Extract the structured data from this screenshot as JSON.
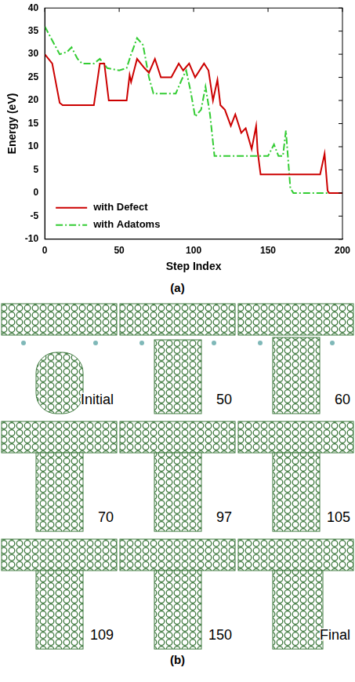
{
  "chart_data": {
    "type": "line",
    "caption": "(a)",
    "x_label": "Step Index",
    "y_label": "Energy (eV)",
    "xlim": [
      0,
      200
    ],
    "xticks": [
      0,
      50,
      100,
      150,
      200
    ],
    "ylim": [
      -10,
      40
    ],
    "yticks": [
      -10,
      -5,
      0,
      5,
      10,
      15,
      20,
      25,
      30,
      35,
      40
    ],
    "grid": false,
    "legend": "lower left",
    "series": [
      {
        "name": "with Defect",
        "color": "#cc0000",
        "line_style": "solid",
        "x": [
          0,
          5,
          10,
          12,
          33,
          37,
          40,
          43,
          55,
          57,
          58,
          62,
          67,
          70,
          74,
          78,
          85,
          90,
          93,
          97,
          101,
          107,
          110,
          113,
          116,
          118,
          121,
          125,
          128,
          132,
          135,
          139,
          142,
          143,
          145,
          185,
          188,
          190,
          191,
          200
        ],
        "values": [
          30,
          28,
          19.5,
          19,
          19,
          28,
          28,
          20,
          20,
          25.5,
          24,
          29,
          27,
          26,
          29,
          25,
          25,
          28,
          26.5,
          28,
          25,
          28,
          26.5,
          20,
          24.5,
          19,
          18,
          14.5,
          17,
          13,
          14,
          9.5,
          14.5,
          9,
          4,
          4,
          8.5,
          0.5,
          0,
          0
        ]
      },
      {
        "name": "with Adatoms",
        "color": "#33cc33",
        "line_style": "dashdot",
        "x": [
          0,
          5,
          10,
          15,
          18,
          22,
          25,
          33,
          37,
          42,
          50,
          55,
          58,
          62,
          66,
          70,
          73,
          88,
          92,
          95,
          98,
          101,
          105,
          108,
          111,
          114,
          150,
          154,
          157,
          160,
          162,
          165,
          167,
          200
        ],
        "values": [
          36,
          33,
          30,
          30.5,
          31.5,
          29,
          28,
          28,
          29,
          27,
          26.5,
          27,
          30,
          33.5,
          32,
          25,
          21.5,
          21.5,
          24.5,
          26.5,
          22,
          16.5,
          18,
          23,
          17,
          8,
          8,
          10.5,
          8,
          8,
          13.5,
          1,
          0,
          0
        ]
      }
    ]
  },
  "figure_b": {
    "caption": "(b)",
    "frames": [
      "Initial",
      "50",
      "60",
      "70",
      "97",
      "105",
      "109",
      "150",
      "Final"
    ]
  }
}
